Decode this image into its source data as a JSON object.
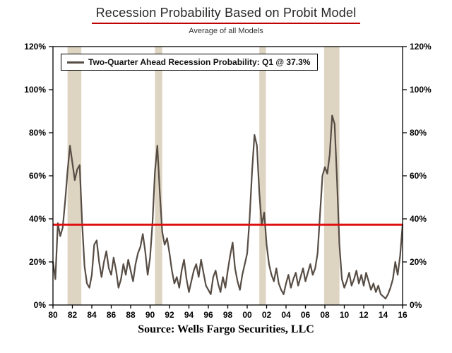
{
  "chart_data": {
    "type": "line",
    "title": "Recession Probability Based on Probit Model",
    "subtitle": "Average of all Models",
    "legend": "Two-Quarter Ahead Recession Probability: Q1 @ 37.3%",
    "source": "Source: Wells Fargo Securities, LLC",
    "xlim": [
      1980,
      2016
    ],
    "ylim": [
      0,
      120
    ],
    "x_start": 1980,
    "x_step": 0.25,
    "y_tick_step": 20,
    "y_ticks": [
      "0%",
      "20%",
      "40%",
      "60%",
      "80%",
      "100%",
      "120%"
    ],
    "x_tick_labels": [
      "80",
      "82",
      "84",
      "86",
      "88",
      "90",
      "92",
      "94",
      "96",
      "98",
      "00",
      "02",
      "04",
      "06",
      "08",
      "10",
      "12",
      "14",
      "16"
    ],
    "reference_line_value": 37.3,
    "recession_bands": [
      [
        1981.5,
        1982.92
      ],
      [
        1990.5,
        1991.25
      ],
      [
        2001.25,
        2001.92
      ],
      [
        2007.92,
        2009.5
      ]
    ],
    "series": [
      {
        "name": "Two-Quarter Ahead Recession Probability",
        "values": [
          20,
          12,
          38,
          32,
          36,
          48,
          62,
          74,
          66,
          58,
          63,
          65,
          38,
          18,
          10,
          8,
          14,
          28,
          30,
          20,
          13,
          20,
          25,
          17,
          14,
          22,
          16,
          8,
          12,
          19,
          14,
          21,
          16,
          11,
          19,
          24,
          27,
          33,
          25,
          14,
          22,
          38,
          62,
          74,
          52,
          34,
          28,
          31,
          24,
          16,
          10,
          13,
          8,
          16,
          21,
          12,
          6,
          11,
          16,
          19,
          13,
          21,
          15,
          9,
          7,
          5,
          13,
          16,
          10,
          6,
          13,
          8,
          16,
          23,
          29,
          17,
          11,
          7,
          14,
          19,
          24,
          40,
          62,
          79,
          74,
          52,
          37,
          43,
          28,
          19,
          14,
          11,
          17,
          10,
          7,
          5,
          10,
          14,
          8,
          12,
          15,
          9,
          13,
          17,
          11,
          15,
          19,
          14,
          17,
          24,
          42,
          60,
          64,
          61,
          70,
          88,
          84,
          58,
          28,
          12,
          8,
          11,
          15,
          9,
          12,
          16,
          10,
          14,
          9,
          15,
          11,
          7,
          10,
          6,
          9,
          5,
          4,
          3,
          5,
          8,
          12,
          20,
          14,
          23,
          37.3
        ]
      }
    ],
    "colors": {
      "line": "#574d45",
      "reference": "#e01010",
      "band": "#ddd4c2",
      "title_underline": "#c00000",
      "axis": "#000000"
    },
    "legend_position": "top-left",
    "grid": "off"
  }
}
